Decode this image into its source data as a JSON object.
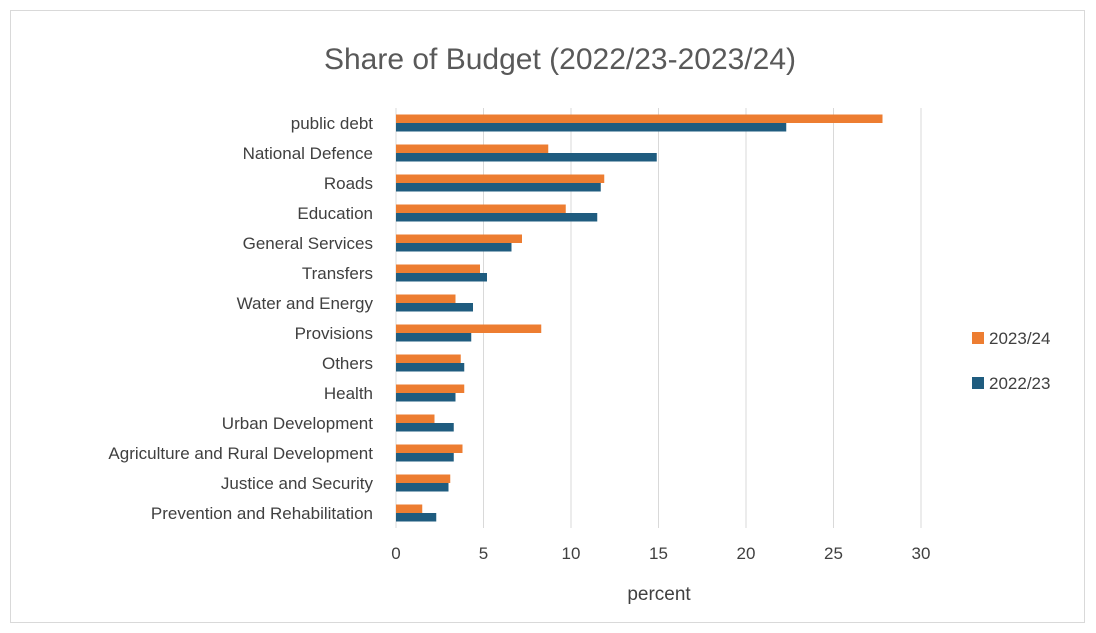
{
  "chart_data": {
    "type": "bar",
    "orientation": "horizontal",
    "title": "Share of Budget (2022/23-2023/24)",
    "xlabel": "percent",
    "ylabel": "",
    "xlim": [
      0,
      30
    ],
    "xticks": [
      0,
      5,
      10,
      15,
      20,
      25,
      30
    ],
    "grid": "vertical",
    "legend_position": "right",
    "categories": [
      "public debt ",
      "National Defence",
      "Roads",
      "Education ",
      "General Services",
      "Transfers",
      "Water and Energy",
      "Provisions",
      "Others",
      "Health",
      "Urban Development",
      "Agriculture and Rural Development",
      "Justice and Security",
      "Prevention and Rehabilitation"
    ],
    "series": [
      {
        "name": "2023/24",
        "color": "#ED7D31",
        "values": [
          27.8,
          8.7,
          11.9,
          9.7,
          7.2,
          4.8,
          3.4,
          8.3,
          3.7,
          3.9,
          2.2,
          3.8,
          3.1,
          1.5
        ]
      },
      {
        "name": "2022/23",
        "color": "#1F5C7F",
        "values": [
          22.3,
          14.9,
          11.7,
          11.5,
          6.6,
          5.2,
          4.4,
          4.3,
          3.9,
          3.4,
          3.3,
          3.3,
          3.0,
          2.3
        ]
      }
    ],
    "legend": [
      "2023/24",
      "2022/23"
    ]
  }
}
